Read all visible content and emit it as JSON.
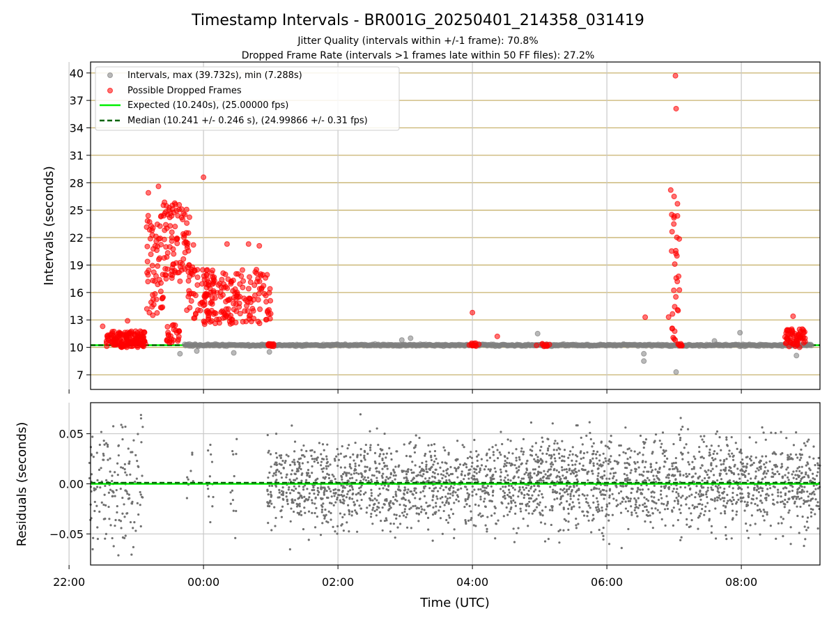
{
  "chart_data": [
    {
      "type": "scatter",
      "title": "Timestamp Intervals - BR001G_20250401_214358_031419",
      "subtitle_lines": [
        "Jitter Quality (intervals within +/-1 frame): 70.8%",
        "Dropped Frame Rate (intervals >1 frames late within 50 FF files): 27.2%"
      ],
      "ylabel": "Intervals (seconds)",
      "xlabel": "",
      "x_unit": "hours relative to 00:00 UTC (2025-04-02)",
      "xlim": [
        -1.68,
        9.17
      ],
      "ylim": [
        5.4,
        41.2
      ],
      "yticks": [
        7,
        10,
        13,
        16,
        19,
        22,
        25,
        28,
        31,
        34,
        37,
        40
      ],
      "grid": {
        "x": true,
        "y": true,
        "y_color": "#c8b26e",
        "x_color": "#c8c8c8"
      },
      "legend": {
        "placement": "top-left",
        "entries": [
          {
            "label": "Intervals, max (39.732s), min (7.288s)",
            "style": "marker",
            "color": "#808080"
          },
          {
            "label": "Possible Dropped Frames",
            "style": "marker",
            "color": "#ff0000"
          },
          {
            "label": "Expected (10.240s), (25.00000 fps)",
            "style": "solid",
            "color": "#00ee00"
          },
          {
            "label": "Median (10.241 +/- 0.246 s), (24.99866 +/- 0.31 fps)",
            "style": "dashed",
            "color": "#006400"
          }
        ]
      },
      "expected_line": 10.24,
      "median_line": 10.241,
      "normal_band": {
        "x_start": -0.28,
        "x_end": 9.05,
        "y": 10.24
      },
      "normal_outliers": [
        {
          "x": -0.35,
          "y": 9.3
        },
        {
          "x": -0.1,
          "y": 9.6
        },
        {
          "x": 0.45,
          "y": 9.4
        },
        {
          "x": 0.98,
          "y": 9.5
        },
        {
          "x": 2.95,
          "y": 10.8
        },
        {
          "x": 3.08,
          "y": 11.0
        },
        {
          "x": 4.97,
          "y": 11.5
        },
        {
          "x": 6.55,
          "y": 8.5
        },
        {
          "x": 6.55,
          "y": 9.3
        },
        {
          "x": 7.03,
          "y": 7.3
        },
        {
          "x": 7.6,
          "y": 10.7
        },
        {
          "x": 7.98,
          "y": 11.6
        },
        {
          "x": 8.82,
          "y": 9.1
        },
        {
          "x": 3.6,
          "y": 10.3
        },
        {
          "x": 5.5,
          "y": 10.3
        }
      ],
      "dropped_frames": [
        {
          "x": 7.02,
          "y": 39.7
        },
        {
          "x": 7.03,
          "y": 36.1
        },
        {
          "x": 0.0,
          "y": 28.6
        },
        {
          "x": -0.67,
          "y": 27.6
        },
        {
          "x": -0.82,
          "y": 26.9
        },
        {
          "x": 6.95,
          "y": 27.2
        },
        {
          "x": 7.0,
          "y": 26.5
        },
        {
          "x": 7.05,
          "y": 25.7
        },
        {
          "x": 4.0,
          "y": 13.8
        },
        {
          "x": 6.57,
          "y": 13.3
        },
        {
          "x": 8.77,
          "y": 13.4
        },
        {
          "x": 0.35,
          "y": 21.3
        },
        {
          "x": 0.67,
          "y": 21.3
        },
        {
          "x": 0.83,
          "y": 21.1
        },
        {
          "x": -0.15,
          "y": 21.2
        },
        {
          "x": -1.5,
          "y": 12.3
        },
        {
          "x": -1.13,
          "y": 12.9
        },
        {
          "x": 4.37,
          "y": 11.2
        }
      ],
      "dropped_clusters": [
        {
          "x_range": [
            -1.45,
            -0.85
          ],
          "y_range": [
            10.0,
            11.8
          ],
          "count": 150
        },
        {
          "x_range": [
            -0.85,
            -0.6
          ],
          "y_range": [
            13.5,
            24.5
          ],
          "count": 60
        },
        {
          "x_range": [
            -0.6,
            -0.2
          ],
          "y_range": [
            17.0,
            26.0
          ],
          "count": 90
        },
        {
          "x_range": [
            -0.55,
            -0.35
          ],
          "y_range": [
            10.5,
            12.5
          ],
          "count": 25
        },
        {
          "x_range": [
            -0.25,
            0.15
          ],
          "y_range": [
            13.0,
            19.0
          ],
          "count": 50
        },
        {
          "x_range": [
            0.0,
            1.0
          ],
          "y_range": [
            12.5,
            18.5
          ],
          "count": 170
        },
        {
          "x_range": [
            0.95,
            1.05
          ],
          "y_range": [
            10.1,
            10.4
          ],
          "count": 20
        },
        {
          "x_range": [
            6.9,
            7.08
          ],
          "y_range": [
            10.5,
            25.0
          ],
          "count": 30
        },
        {
          "x_range": [
            7.05,
            7.12
          ],
          "y_range": [
            10.1,
            10.4
          ],
          "count": 10
        },
        {
          "x_range": [
            8.65,
            8.95
          ],
          "y_range": [
            10.0,
            12.0
          ],
          "count": 60
        },
        {
          "x_range": [
            3.95,
            4.1
          ],
          "y_range": [
            10.1,
            10.5
          ],
          "count": 12
        },
        {
          "x_range": [
            4.95,
            5.15
          ],
          "y_range": [
            10.1,
            10.4
          ],
          "count": 10
        }
      ]
    },
    {
      "type": "scatter",
      "title": "",
      "xlabel": "Time (UTC)",
      "ylabel": "Residuals (seconds)",
      "x_unit": "hours relative to 00:00 UTC (2025-04-02)",
      "xlim": [
        -1.68,
        9.17
      ],
      "ylim": [
        -0.081,
        0.081
      ],
      "yticks": [
        -0.05,
        0.0,
        0.05
      ],
      "ytick_labels": [
        "−0.05",
        "0.00",
        "0.05"
      ],
      "xticks": [
        -2,
        0,
        2,
        4,
        6,
        8
      ],
      "xtick_labels": [
        "22:00",
        "00:00",
        "02:00",
        "04:00",
        "06:00",
        "08:00"
      ],
      "grid": true,
      "expected_line": 0.0,
      "median_line": 0.001,
      "point_color": "#707070",
      "point_groups": [
        {
          "x_range": [
            -1.7,
            -0.9
          ],
          "spread": 0.03,
          "count": 160
        },
        {
          "x_range": [
            -0.25,
            -0.15
          ],
          "spread": 0.015,
          "count": 8
        },
        {
          "x_range": [
            0.05,
            0.15
          ],
          "spread": 0.03,
          "count": 12
        },
        {
          "x_range": [
            0.4,
            0.5
          ],
          "spread": 0.03,
          "count": 12
        },
        {
          "x_range": [
            0.95,
            9.17
          ],
          "spread": 0.022,
          "count": 2600
        }
      ]
    }
  ]
}
